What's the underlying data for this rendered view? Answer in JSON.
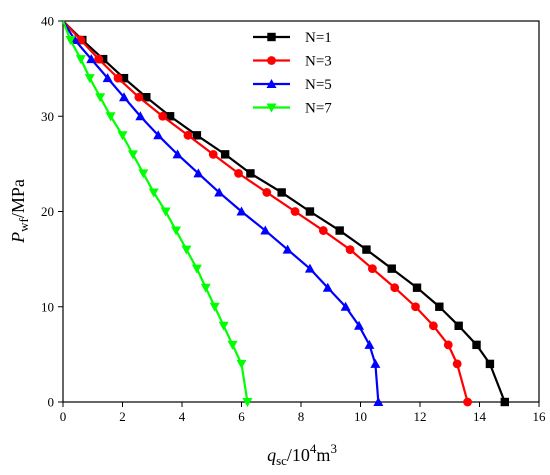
{
  "chart_data": {
    "type": "line",
    "title": "",
    "xlabel": {
      "main": "q",
      "sub": "sc",
      "rest_prefix": "/10",
      "sup": "4",
      "rest_suffix": "m",
      "sup2": "3"
    },
    "ylabel": {
      "main": "P",
      "sub": "wf",
      "rest": "/MPa"
    },
    "xlim": [
      0,
      16
    ],
    "ylim": [
      0,
      40
    ],
    "xticks": [
      0,
      2,
      4,
      6,
      8,
      10,
      12,
      14,
      16
    ],
    "yticks": [
      0,
      10,
      20,
      30,
      40
    ],
    "grid": false,
    "legend_position": "top-right",
    "y": [
      40,
      38,
      36,
      34,
      32,
      30,
      28,
      26,
      24,
      22,
      20,
      18,
      16,
      14,
      12,
      10,
      8,
      6,
      4,
      0
    ],
    "series": [
      {
        "name": "N=1",
        "color": "#000000",
        "marker": "square",
        "x": [
          0,
          0.65,
          1.35,
          2.05,
          2.8,
          3.6,
          4.5,
          5.45,
          6.3,
          7.35,
          8.3,
          9.3,
          10.2,
          11.05,
          11.9,
          12.65,
          13.3,
          13.9,
          14.35,
          14.85
        ]
      },
      {
        "name": "N=3",
        "color": "#ff0000",
        "marker": "circle",
        "x": [
          0,
          0.6,
          1.2,
          1.85,
          2.55,
          3.35,
          4.2,
          5.05,
          5.9,
          6.85,
          7.8,
          8.75,
          9.65,
          10.4,
          11.15,
          11.85,
          12.45,
          12.95,
          13.25,
          13.6
        ]
      },
      {
        "name": "N=5",
        "color": "#0000ff",
        "marker": "triangle-up",
        "x": [
          0,
          0.4,
          0.95,
          1.5,
          2.05,
          2.6,
          3.2,
          3.85,
          4.55,
          5.25,
          6.0,
          6.8,
          7.55,
          8.3,
          8.9,
          9.5,
          9.95,
          10.3,
          10.5,
          10.6
        ]
      },
      {
        "name": "N=7",
        "color": "#00ff00",
        "marker": "triangle-down",
        "x": [
          0,
          0.25,
          0.6,
          0.9,
          1.25,
          1.6,
          2.0,
          2.35,
          2.7,
          3.05,
          3.45,
          3.8,
          4.15,
          4.5,
          4.8,
          5.1,
          5.4,
          5.7,
          6.0,
          6.2
        ]
      }
    ]
  }
}
